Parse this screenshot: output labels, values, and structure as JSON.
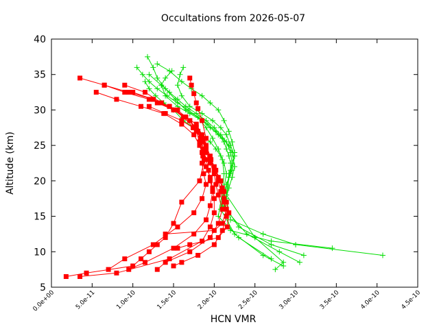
{
  "chart_data": {
    "type": "line",
    "title": "Occultations from 2026-05-07",
    "xlabel": "HCN VMR",
    "ylabel": "Altitude (km)",
    "xlim": [
      0,
      4.5e-10
    ],
    "ylim": [
      5,
      40
    ],
    "x_tick_labels": [
      "0.0e+00",
      "5.0e-11",
      "1.0e-10",
      "1.5e-10",
      "2.0e-10",
      "2.5e-10",
      "3.0e-10",
      "3.5e-10",
      "4.0e-10",
      "4.5e-10"
    ],
    "x_tick_values": [
      0,
      5e-11,
      1e-10,
      1.5e-10,
      2e-10,
      2.5e-10,
      3e-10,
      3.5e-10,
      4e-10,
      4.5e-10
    ],
    "y_tick_labels": [
      "5",
      "10",
      "15",
      "20",
      "25",
      "30",
      "35",
      "40"
    ],
    "y_tick_values": [
      5,
      10,
      15,
      20,
      25,
      30,
      35,
      40
    ],
    "grid": false,
    "legend": "none",
    "colors": {
      "red_series": "#ff0000",
      "green_series": "#00dd00",
      "axes": "#000000"
    },
    "series": [
      {
        "marker": "square",
        "color": "#ff0000",
        "x": [
          1.7e-10,
          1.72e-10,
          1.75e-10,
          1.78e-10,
          1.8e-10,
          1.85e-10,
          1.9e-10,
          1.88e-10,
          1.82e-10,
          1.6e-10,
          1.5e-10,
          1.4e-10,
          1.3e-10,
          1.2e-10,
          1.1e-10,
          1e-10,
          4.3e-11,
          1.8e-11
        ],
        "y": [
          34.5,
          33.5,
          32.3,
          31.0,
          30.2,
          28.5,
          26.0,
          23.0,
          20.0,
          17.0,
          14.0,
          12.0,
          11.0,
          10.0,
          9.0,
          8.0,
          7.0,
          6.5
        ]
      },
      {
        "marker": "square",
        "color": "#ff0000",
        "x": [
          3.5e-11,
          6.5e-11,
          9.5e-11,
          1.25e-10,
          1.5e-10,
          1.7e-10,
          1.78e-10,
          1.82e-10,
          1.85e-10,
          1.85e-10,
          1.87e-10,
          1.9e-10,
          1.85e-10,
          1.75e-10,
          1.55e-10,
          1.25e-10,
          9e-11,
          7e-11
        ],
        "y": [
          34.5,
          33.5,
          32.5,
          31.5,
          30.0,
          28.5,
          27.0,
          25.5,
          24.0,
          22.5,
          21.0,
          19.5,
          17.5,
          15.5,
          13.5,
          11.0,
          9.0,
          7.5
        ]
      },
      {
        "marker": "square",
        "color": "#ff0000",
        "x": [
          6.5e-11,
          9e-11,
          1.2e-10,
          1.45e-10,
          1.65e-10,
          1.78e-10,
          1.83e-10,
          1.87e-10,
          1.9e-10,
          1.93e-10,
          1.95e-10,
          1.98e-10,
          1.95e-10,
          1.9e-10,
          1.75e-10,
          1.5e-10,
          1.15e-10,
          9.5e-11
        ],
        "y": [
          33.5,
          32.5,
          31.5,
          30.5,
          29.0,
          27.5,
          26.0,
          24.5,
          23.0,
          21.5,
          20.0,
          18.5,
          16.5,
          14.5,
          12.5,
          10.5,
          8.5,
          7.5
        ]
      },
      {
        "marker": "square",
        "color": "#ff0000",
        "x": [
          5.5e-11,
          8e-11,
          1.1e-10,
          1.38e-10,
          1.6e-10,
          1.75e-10,
          1.82e-10,
          1.86e-10,
          1.9e-10,
          1.95e-10,
          1.98e-10,
          2e-10,
          2e-10,
          1.95e-10,
          1.85e-10,
          1.45e-10,
          8e-11,
          3.5e-11
        ],
        "y": [
          32.5,
          31.5,
          30.5,
          29.5,
          28.0,
          26.5,
          25.0,
          23.5,
          22.0,
          20.5,
          19.0,
          17.5,
          15.5,
          13.5,
          11.5,
          9.0,
          7.0,
          6.5
        ]
      },
      {
        "marker": "square",
        "color": "#ff0000",
        "x": [
          9e-11,
          1.15e-10,
          1.35e-10,
          1.55e-10,
          1.7e-10,
          1.8e-10,
          1.86e-10,
          1.9e-10,
          1.95e-10,
          2e-10,
          2.02e-10,
          2.05e-10,
          2.1e-10,
          2.05e-10,
          1.95e-10,
          1.7e-10,
          1.4e-10,
          1.3e-10
        ],
        "y": [
          33.5,
          32.5,
          31.0,
          30.0,
          28.5,
          27.0,
          25.5,
          24.0,
          22.5,
          21.0,
          19.5,
          18.0,
          16.0,
          14.0,
          12.0,
          10.0,
          8.5,
          7.5
        ]
      },
      {
        "marker": "square",
        "color": "#ff0000",
        "x": [
          1e-10,
          1.25e-10,
          1.45e-10,
          1.62e-10,
          1.75e-10,
          1.84e-10,
          1.9e-10,
          1.95e-10,
          2e-10,
          2.05e-10,
          2.08e-10,
          2.12e-10,
          2.15e-10,
          2.1e-10,
          2e-10,
          1.8e-10,
          1.6e-10,
          1.5e-10
        ],
        "y": [
          32.5,
          31.5,
          30.5,
          29.0,
          27.5,
          26.0,
          24.5,
          23.0,
          21.5,
          20.0,
          18.5,
          17.0,
          15.0,
          13.0,
          11.0,
          9.5,
          8.5,
          8.0
        ]
      },
      {
        "marker": "square",
        "color": "#ff0000",
        "x": [
          1.3e-10,
          1.5e-10,
          1.65e-10,
          1.78e-10,
          1.85e-10,
          1.9e-10,
          1.95e-10,
          2e-10,
          2.05e-10,
          2.1e-10,
          2.12e-10,
          2.15e-10,
          2.1e-10,
          2e-10,
          1.4e-10
        ],
        "y": [
          31.0,
          30.0,
          29.0,
          28.0,
          26.5,
          25.0,
          23.5,
          22.0,
          20.5,
          19.0,
          17.5,
          16.0,
          14.0,
          13.0,
          12.5
        ]
      },
      {
        "marker": "square",
        "color": "#ff0000",
        "x": [
          1.2e-10,
          1.4e-10,
          1.6e-10,
          1.74e-10,
          1.84e-10,
          1.9e-10,
          1.96e-10,
          2.02e-10,
          2.08e-10,
          2.12e-10,
          2.15e-10,
          2.18e-10,
          2.16e-10,
          2.05e-10,
          1.7e-10,
          1.55e-10
        ],
        "y": [
          30.5,
          29.5,
          28.5,
          27.5,
          26.0,
          24.5,
          23.0,
          21.5,
          20.0,
          18.5,
          17.0,
          15.5,
          13.5,
          12.0,
          11.0,
          10.5
        ]
      },
      {
        "marker": "plus",
        "color": "#00dd00",
        "x": [
          1.48e-10,
          1.4e-10,
          1.35e-10,
          1.4e-10,
          1.55e-10,
          1.7e-10,
          1.85e-10,
          1.95e-10,
          2.05e-10,
          2.12e-10,
          2.15e-10,
          2.18e-10,
          2.2e-10,
          2.2e-10,
          2.18e-10,
          2.15e-10,
          2.2e-10,
          2.6e-10,
          3e-10,
          4.07e-10
        ],
        "y": [
          35.5,
          34.5,
          33.5,
          32.0,
          30.5,
          29.5,
          28.5,
          27.5,
          26.5,
          25.5,
          24.5,
          23.5,
          22.5,
          21.5,
          20.5,
          17.5,
          14.5,
          12.5,
          11.0,
          9.5
        ]
      },
      {
        "marker": "plus",
        "color": "#00dd00",
        "x": [
          1.18e-10,
          1.25e-10,
          1.3e-10,
          1.4e-10,
          1.52e-10,
          1.65e-10,
          1.8e-10,
          1.92e-10,
          2.02e-10,
          2.1e-10,
          2.18e-10,
          2.22e-10,
          2.25e-10,
          2.22e-10,
          2.18e-10,
          2.12e-10,
          2.2e-10,
          2.7e-10,
          3.45e-10
        ],
        "y": [
          37.5,
          36.0,
          34.5,
          33.0,
          31.5,
          30.0,
          29.0,
          28.0,
          27.0,
          26.0,
          25.0,
          24.0,
          22.0,
          20.5,
          19.0,
          16.5,
          13.0,
          11.5,
          10.5
        ]
      },
      {
        "marker": "plus",
        "color": "#00dd00",
        "x": [
          1.2e-10,
          1.35e-10,
          1.45e-10,
          1.55e-10,
          1.65e-10,
          1.78e-10,
          1.9e-10,
          2e-10,
          2.08e-10,
          2.15e-10,
          2.2e-10,
          2.22e-10,
          2.2e-10,
          2.15e-10,
          2.1e-10,
          2.3e-10,
          2.7e-10,
          3.1e-10
        ],
        "y": [
          35.0,
          33.5,
          32.5,
          31.5,
          30.5,
          29.5,
          28.5,
          27.5,
          26.5,
          25.5,
          24.0,
          22.5,
          21.0,
          19.5,
          17.0,
          13.5,
          11.0,
          9.5
        ]
      },
      {
        "marker": "plus",
        "color": "#00dd00",
        "x": [
          1.15e-10,
          1.2e-10,
          1.28e-10,
          1.38e-10,
          1.5e-10,
          1.62e-10,
          1.75e-10,
          1.85e-10,
          1.95e-10,
          2.02e-10,
          2.08e-10,
          2.12e-10,
          2.15e-10,
          2.12e-10,
          2.08e-10,
          2.25e-10,
          2.6e-10,
          2.85e-10
        ],
        "y": [
          34.0,
          33.0,
          32.0,
          31.0,
          30.0,
          28.5,
          27.5,
          26.5,
          25.5,
          24.5,
          23.5,
          22.5,
          21.0,
          19.0,
          16.0,
          12.5,
          9.5,
          8.0
        ]
      },
      {
        "marker": "plus",
        "color": "#00dd00",
        "x": [
          1.3e-10,
          1.45e-10,
          1.6e-10,
          1.72e-10,
          1.85e-10,
          1.95e-10,
          2.05e-10,
          2.12e-10,
          2.18e-10,
          2.22e-10,
          2.25e-10,
          2.22e-10,
          2.18e-10,
          2.15e-10,
          2.5e-10,
          2.85e-10,
          2.75e-10
        ],
        "y": [
          36.5,
          35.5,
          34.0,
          33.0,
          32.0,
          31.0,
          30.0,
          28.5,
          27.0,
          25.5,
          24.0,
          22.5,
          21.0,
          18.0,
          12.0,
          8.5,
          7.5
        ]
      },
      {
        "marker": "plus",
        "color": "#00dd00",
        "x": [
          1.05e-10,
          1.12e-10,
          1.2e-10,
          1.3e-10,
          1.42e-10,
          1.55e-10,
          1.68e-10,
          1.8e-10,
          1.9e-10,
          1.98e-10,
          2.05e-10,
          2.1e-10,
          2.12e-10,
          2.1e-10,
          2.05e-10,
          2.3e-10,
          2.7e-10
        ],
        "y": [
          36.0,
          35.0,
          34.0,
          33.0,
          32.0,
          31.0,
          30.0,
          29.0,
          27.5,
          26.0,
          24.5,
          23.0,
          21.0,
          18.5,
          15.0,
          12.0,
          9.0
        ]
      },
      {
        "marker": "plus",
        "color": "#00dd00",
        "x": [
          1.62e-10,
          1.58e-10,
          1.55e-10,
          1.6e-10,
          1.7e-10,
          1.85e-10,
          1.98e-10,
          2.08e-10,
          2.15e-10,
          2.2e-10,
          2.25e-10,
          2.22e-10,
          2.15e-10,
          2.1e-10,
          2.4e-10,
          2.8e-10,
          3.05e-10
        ],
        "y": [
          36.0,
          35.0,
          33.5,
          32.0,
          30.5,
          29.5,
          28.5,
          27.5,
          26.5,
          25.0,
          23.5,
          21.5,
          19.5,
          16.5,
          12.5,
          10.0,
          8.5
        ]
      }
    ]
  }
}
